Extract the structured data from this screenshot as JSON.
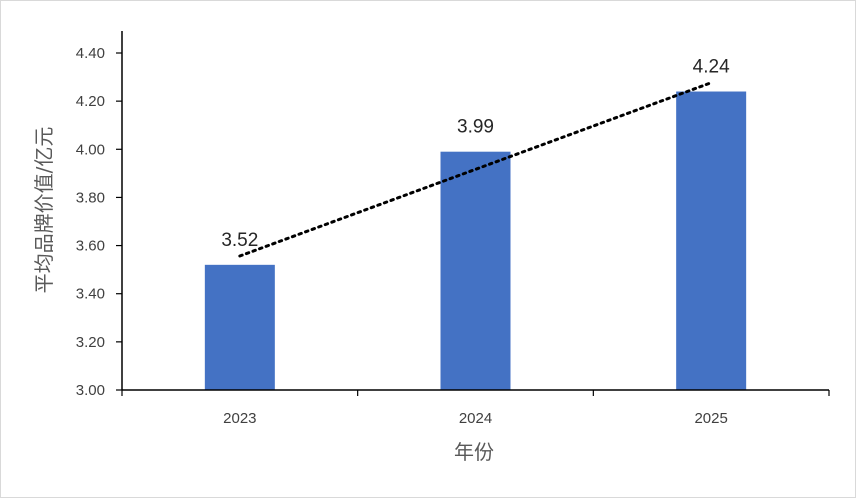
{
  "chart_data": {
    "type": "bar",
    "categories": [
      "2023",
      "2024",
      "2025"
    ],
    "values": [
      3.52,
      3.99,
      4.24
    ],
    "data_labels": [
      "3.52",
      "3.99",
      "4.24"
    ],
    "xlabel": "年份",
    "ylabel": "平均品牌价值/亿元",
    "ylim": [
      3.0,
      4.4
    ],
    "yticks": [
      "3.00",
      "3.20",
      "3.40",
      "3.60",
      "3.80",
      "4.00",
      "4.20",
      "4.40"
    ],
    "trendline": {
      "type": "linear",
      "style": "dotted",
      "color": "#000000"
    },
    "bar_color": "#4472C4",
    "grid": false,
    "legend": "none"
  }
}
